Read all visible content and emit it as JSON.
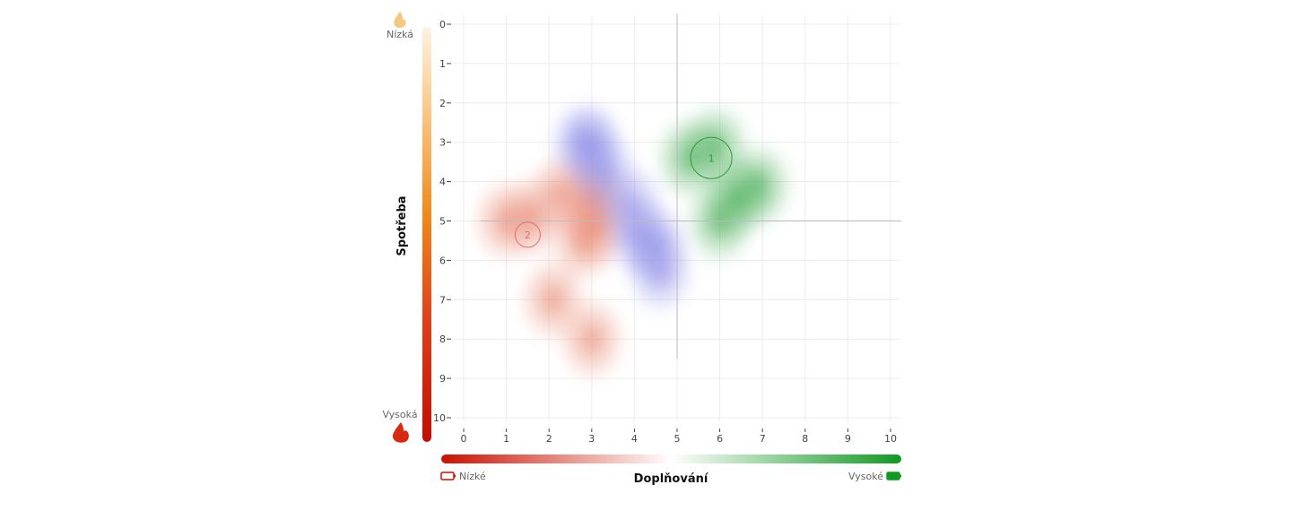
{
  "chart_data": {
    "type": "heatmap",
    "title": "",
    "xlabel": "Doplňování",
    "ylabel": "Spotřeba",
    "xlim": [
      0,
      10
    ],
    "ylim": [
      0,
      10
    ],
    "y_inverted": true,
    "x_ticks": [
      0,
      1,
      2,
      3,
      4,
      5,
      6,
      7,
      8,
      9,
      10
    ],
    "y_ticks": [
      0,
      1,
      2,
      3,
      4,
      5,
      6,
      7,
      8,
      9,
      10
    ],
    "grid": true,
    "crosshair": {
      "x": 5,
      "y": 5
    },
    "x_axis_legend": {
      "low": "Nízké",
      "high": "Vysoké"
    },
    "y_axis_legend": {
      "low": "Nízká",
      "high": "Vysoká"
    },
    "markers": [
      {
        "label": "1",
        "x": 5.8,
        "y": 3.4,
        "color": "#2e9b3a"
      },
      {
        "label": "2",
        "x": 1.5,
        "y": 5.35,
        "color": "#e07070"
      }
    ],
    "clusters": [
      {
        "color": "#e8806c",
        "points": [
          [
            1.0,
            5.0
          ],
          [
            1.6,
            4.9
          ],
          [
            2.3,
            4.3
          ],
          [
            3.0,
            4.4
          ],
          [
            2.8,
            5.5
          ],
          [
            2.1,
            7.0
          ],
          [
            3.0,
            8.0
          ],
          [
            3.1,
            5.1
          ]
        ]
      },
      {
        "color": "#8a8ae8",
        "points": [
          [
            3.0,
            3.1
          ],
          [
            3.3,
            3.8
          ],
          [
            3.9,
            4.6
          ],
          [
            4.1,
            5.4
          ],
          [
            4.6,
            6.3
          ],
          [
            4.5,
            5.6
          ],
          [
            2.8,
            3.0
          ]
        ]
      },
      {
        "color": "#3aa84a",
        "points": [
          [
            5.9,
            3.1
          ],
          [
            6.9,
            4.1
          ],
          [
            6.0,
            5.0
          ],
          [
            5.3,
            3.4
          ],
          [
            6.4,
            4.4
          ]
        ]
      }
    ],
    "colors": {
      "low": "#cc1100",
      "high": "#119922",
      "fire": "#e8a070"
    }
  }
}
